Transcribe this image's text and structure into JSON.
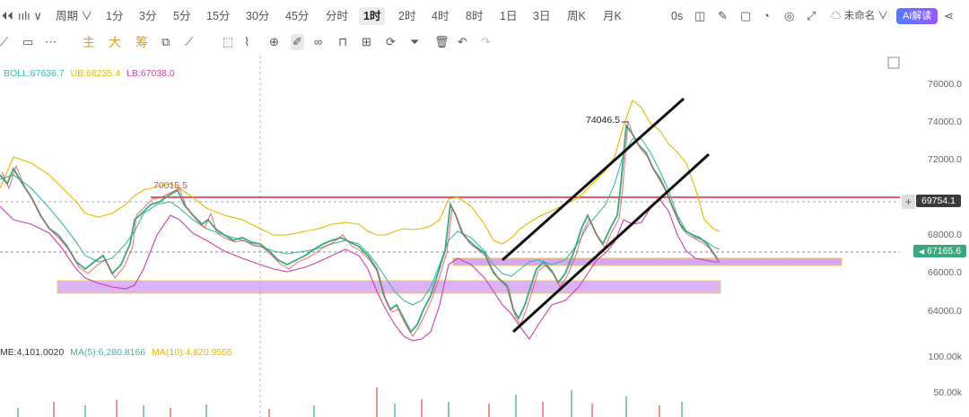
{
  "toolbar": {
    "period_label": "周期",
    "intervals": [
      "1分",
      "3分",
      "5分",
      "15分",
      "30分",
      "45分",
      "分时",
      "1时",
      "2时",
      "4时",
      "8时",
      "1日",
      "3日",
      "周K",
      "月K"
    ],
    "active_interval": "1时",
    "zero_s": "0s",
    "workspace_name": "未命名",
    "ai_label": "AI解读"
  },
  "draw_tools": {
    "main": "主",
    "big": "大",
    "chip": "筹"
  },
  "indicators": {
    "boll": "BOLL:67636.7",
    "ub": "UB:68235.4",
    "lb": "LB:67038.0",
    "vol_me": "ME:4,101.0020",
    "ma5": "MA(5):6,280.8166",
    "ma10": "MA(10):4,820.9555"
  },
  "price_axis": [
    "76000.0",
    "74000.0",
    "72000.0",
    "68000.0",
    "66000.0",
    "64000.0"
  ],
  "volume_axis": [
    "100.00k",
    "50.00k"
  ],
  "annotations": {
    "high": "74046.5",
    "left_high": "70015.5",
    "red_line_price": "69754.1",
    "current_price": "67165.6"
  },
  "colors": {
    "boll_mid": "#3bb8a8",
    "boll_up": "#e6b800",
    "boll_low": "#cc3fa8",
    "up": "#3aa87e",
    "down": "#e24a4a",
    "zone": "#c98cf0",
    "accent": "#4e7cff"
  }
}
